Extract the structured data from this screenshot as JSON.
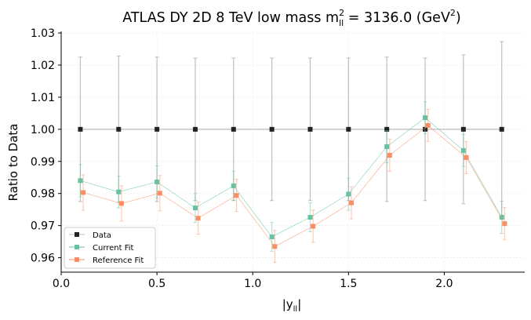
{
  "chart_data": {
    "type": "line",
    "title": {
      "main": "ATLAS DY 2D 8 TeV low mass m",
      "sup": "2",
      "sub": "ll",
      "mid": " = 3136.0 (GeV",
      "sup2": "2",
      "end": ")"
    },
    "xlabel": {
      "main": "|y",
      "sub": "ll",
      "end": "|"
    },
    "ylabel": "Ratio to Data",
    "xlim": [
      0.0,
      2.42
    ],
    "ylim": [
      0.9555,
      1.0305
    ],
    "xticks": [
      0.0,
      0.5,
      1.0,
      1.5,
      2.0
    ],
    "xtick_labels": [
      "0.0",
      "0.5",
      "1.0",
      "1.5",
      "2.0"
    ],
    "yticks": [
      0.96,
      0.97,
      0.98,
      0.99,
      1.0,
      1.01,
      1.02,
      1.03
    ],
    "ytick_labels": [
      "0.96",
      "0.97",
      "0.98",
      "0.99",
      "1.00",
      "1.01",
      "1.02",
      "1.03"
    ],
    "grid": true,
    "legend_position": "lower-left",
    "series": [
      {
        "name": "Data",
        "color": "#222222",
        "line_color": "#bbbbbb",
        "error_color": "#aaaaaa",
        "marker": "square",
        "x": [
          0.1,
          0.3,
          0.5,
          0.7,
          0.9,
          1.1,
          1.3,
          1.5,
          1.7,
          1.9,
          2.1,
          2.3
        ],
        "y": [
          1.0,
          1.0,
          1.0,
          1.0,
          1.0,
          1.0,
          1.0,
          1.0,
          1.0,
          1.0,
          1.0,
          1.0
        ],
        "err": [
          0.0225,
          0.0228,
          0.0225,
          0.0222,
          0.0222,
          0.0222,
          0.0222,
          0.0222,
          0.0225,
          0.0222,
          0.0232,
          0.0273
        ]
      },
      {
        "name": "Current Fit",
        "color": "#66c2a5",
        "marker": "square",
        "x": [
          0.1,
          0.3,
          0.5,
          0.7,
          0.9,
          1.1,
          1.3,
          1.5,
          1.7,
          1.9,
          2.1,
          2.3
        ],
        "y": [
          0.984,
          0.9805,
          0.9836,
          0.9755,
          0.9824,
          0.9665,
          0.9726,
          0.9798,
          0.9946,
          1.0036,
          0.9934,
          0.9726
        ],
        "err": [
          0.005,
          0.005,
          0.005,
          0.0045,
          0.0045,
          0.0045,
          0.0045,
          0.005,
          0.005,
          0.005,
          0.005,
          0.005
        ]
      },
      {
        "name": "Reference Fit",
        "color": "#fc8d62",
        "marker": "square",
        "x": [
          0.115,
          0.315,
          0.515,
          0.715,
          0.915,
          1.115,
          1.315,
          1.515,
          1.715,
          1.915,
          2.115,
          2.315
        ],
        "y": [
          0.9803,
          0.9769,
          0.9801,
          0.9723,
          0.9794,
          0.9635,
          0.9698,
          0.9771,
          0.9919,
          1.0012,
          0.9912,
          0.9706
        ],
        "err": [
          0.0055,
          0.0055,
          0.0055,
          0.005,
          0.005,
          0.005,
          0.005,
          0.005,
          0.005,
          0.005,
          0.005,
          0.005
        ]
      }
    ]
  }
}
